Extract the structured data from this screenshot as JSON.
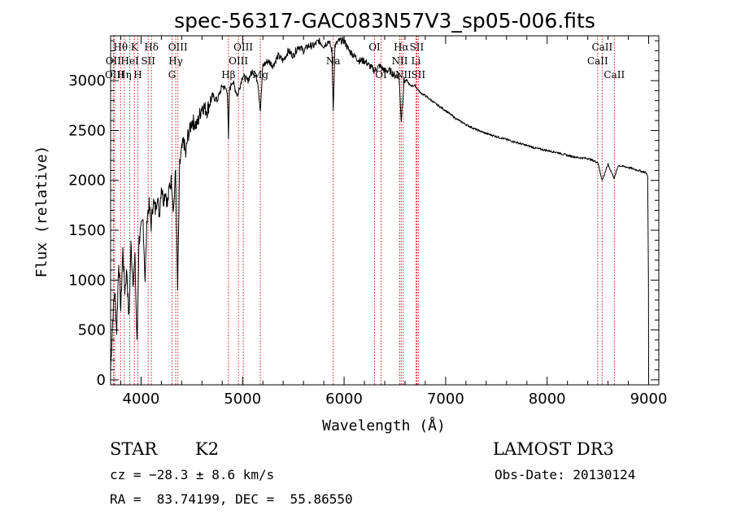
{
  "chart_data": {
    "type": "line",
    "title": "spec-56317-GAC083N57V3_sp05-006.fits",
    "xlabel": "Wavelength (Å)",
    "ylabel": "Flux (relative)",
    "xlim": [
      3700,
      9100
    ],
    "ylim": [
      -50,
      3450
    ],
    "xticks": [
      4000,
      5000,
      6000,
      7000,
      8000,
      9000
    ],
    "yticks": [
      0,
      500,
      1000,
      1500,
      2000,
      2500,
      3000
    ],
    "grid": false,
    "series": [
      {
        "name": "flux",
        "x": [
          3700,
          3720,
          3740,
          3760,
          3780,
          3800,
          3820,
          3840,
          3860,
          3880,
          3900,
          3920,
          3940,
          3960,
          3980,
          4000,
          4020,
          4040,
          4060,
          4080,
          4100,
          4120,
          4140,
          4160,
          4180,
          4200,
          4220,
          4240,
          4260,
          4280,
          4300,
          4320,
          4340,
          4360,
          4380,
          4400,
          4420,
          4440,
          4460,
          4480,
          4500,
          4550,
          4600,
          4650,
          4700,
          4750,
          4800,
          4850,
          4861,
          4870,
          4900,
          4950,
          5000,
          5050,
          5100,
          5150,
          5175,
          5200,
          5250,
          5300,
          5350,
          5400,
          5450,
          5500,
          5550,
          5600,
          5650,
          5700,
          5750,
          5800,
          5850,
          5880,
          5893,
          5910,
          5950,
          6000,
          6050,
          6100,
          6150,
          6200,
          6250,
          6300,
          6350,
          6400,
          6450,
          6500,
          6540,
          6563,
          6590,
          6620,
          6650,
          6700,
          6750,
          6800,
          6900,
          7000,
          7100,
          7200,
          7300,
          7400,
          7500,
          7600,
          7700,
          7800,
          7900,
          8000,
          8100,
          8200,
          8300,
          8400,
          8500,
          8542,
          8600,
          8662,
          8700,
          8800,
          8900,
          8970,
          8990,
          8998,
          9000
        ],
        "values": [
          100,
          600,
          900,
          500,
          1200,
          700,
          1300,
          900,
          1100,
          600,
          1350,
          1000,
          1200,
          350,
          1400,
          1500,
          1600,
          1000,
          1650,
          1750,
          1550,
          1800,
          1700,
          1850,
          1650,
          1950,
          1800,
          1900,
          1750,
          1950,
          2000,
          1700,
          2100,
          900,
          2150,
          2300,
          2400,
          2250,
          2450,
          2500,
          2600,
          2550,
          2750,
          2700,
          2850,
          2800,
          2950,
          2900,
          2400,
          2900,
          3000,
          2850,
          3050,
          3000,
          3100,
          3000,
          2700,
          3150,
          3200,
          3150,
          3250,
          3200,
          3300,
          3250,
          3350,
          3300,
          3350,
          3350,
          3400,
          3350,
          3400,
          3300,
          2700,
          3350,
          3400,
          3400,
          3300,
          3250,
          3200,
          3200,
          3150,
          3100,
          3150,
          3100,
          3100,
          3050,
          3050,
          2600,
          3000,
          3000,
          2950,
          2950,
          2880,
          2850,
          2770,
          2700,
          2620,
          2560,
          2510,
          2470,
          2440,
          2410,
          2380,
          2350,
          2320,
          2300,
          2280,
          2250,
          2230,
          2220,
          2180,
          2000,
          2160,
          2020,
          2150,
          2130,
          2100,
          2080,
          2050,
          1000,
          0
        ]
      }
    ],
    "line_ids": [
      {
        "label": "Hθ",
        "x": 3798,
        "row": 1
      },
      {
        "label": "OII",
        "x": 3727,
        "row": 2
      },
      {
        "label": "OIII",
        "x": 3740,
        "row": 3
      },
      {
        "label": "K",
        "x": 3934,
        "row": 1
      },
      {
        "label": "HeI",
        "x": 3889,
        "row": 2
      },
      {
        "label": "Hη",
        "x": 3835,
        "row": 3
      },
      {
        "label": "SII",
        "x": 4070,
        "row": 2
      },
      {
        "label": "H",
        "x": 3968,
        "row": 3
      },
      {
        "label": "Hδ",
        "x": 4102,
        "row": 1
      },
      {
        "label": "OIII",
        "x": 4363,
        "row": 1
      },
      {
        "label": "Hγ",
        "x": 4341,
        "row": 2
      },
      {
        "label": "G",
        "x": 4305,
        "row": 3
      },
      {
        "label": "OIII",
        "x": 5007,
        "row": 1
      },
      {
        "label": "OIII",
        "x": 4959,
        "row": 2
      },
      {
        "label": "Hβ",
        "x": 4861,
        "row": 3
      },
      {
        "label": "Mg",
        "x": 5175,
        "row": 3
      },
      {
        "label": "Na",
        "x": 5893,
        "row": 2
      },
      {
        "label": "OI",
        "x": 6300,
        "row": 1
      },
      {
        "label": "OI",
        "x": 6364,
        "row": 3
      },
      {
        "label": "Hα",
        "x": 6563,
        "row": 1
      },
      {
        "label": "NII",
        "x": 6548,
        "row": 2
      },
      {
        "label": "NII",
        "x": 6583,
        "row": 3
      },
      {
        "label": "SII",
        "x": 6716,
        "row": 1
      },
      {
        "label": "Li",
        "x": 6708,
        "row": 2
      },
      {
        "label": "SII",
        "x": 6731,
        "row": 3
      },
      {
        "label": "CaII",
        "x": 8542,
        "row": 1
      },
      {
        "label": "CaII",
        "x": 8498,
        "row": 2
      },
      {
        "label": "CaII",
        "x": 8662,
        "row": 3
      }
    ]
  },
  "info": {
    "class_label": "STAR",
    "subclass": "K2",
    "survey": "LAMOST DR3",
    "cz": "cz = −28.3 ± 8.6 km/s",
    "obs_date": "Obs-Date: 20130124",
    "coords": "RA =  83.74199, DEC =  55.86550"
  },
  "colors": {
    "axis": "#000000",
    "spectrum": "#000000",
    "line_marker": "#cc0000"
  }
}
